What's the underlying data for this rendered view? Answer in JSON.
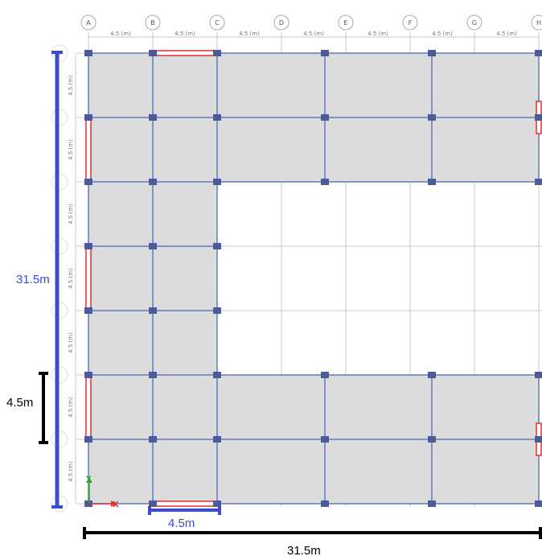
{
  "grid": {
    "column_labels": [
      "A",
      "B",
      "C",
      "D",
      "E",
      "F",
      "G",
      "H"
    ],
    "spacing_label": "4.5 (m)",
    "column_spacing_count": 7,
    "row_spacing_count": 7
  },
  "annotations": {
    "total_height": "31.5m",
    "bay_height": "4.5m",
    "bay_width": "4.5m",
    "total_width": "31.5m"
  },
  "colors": {
    "slab": "#dcdcdc",
    "beam": "#6a78b8",
    "column": "#4a5a9a",
    "grid_line": "#c8c8c8",
    "wall": "#e03030",
    "dim_blue": "#3d4bd0",
    "dim_black": "#000000"
  },
  "axes": {
    "x_label": "X",
    "y_label": "Y"
  }
}
